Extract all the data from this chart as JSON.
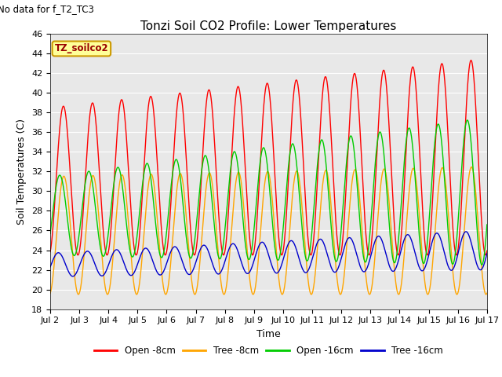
{
  "title": "Tonzi Soil CO2 Profile: Lower Temperatures",
  "no_data_text": "No data for f_T2_TC3",
  "inset_label": "TZ_soilco2",
  "xlabel": "Time",
  "ylabel": "Soil Temperatures (C)",
  "ylim": [
    18,
    46
  ],
  "xlim": [
    0,
    15
  ],
  "x_tick_labels": [
    "Jul 2",
    "Jul 3",
    "Jul 4",
    "Jul 5",
    "Jul 6",
    "Jul 7",
    "Jul 8",
    "Jul 9",
    "Jul 10",
    "Jul 11",
    "Jul 12",
    "Jul 13",
    "Jul 14",
    "Jul 15",
    "Jul 16",
    "Jul 17"
  ],
  "yticks": [
    18,
    20,
    22,
    24,
    26,
    28,
    30,
    32,
    34,
    36,
    38,
    40,
    42,
    44,
    46
  ],
  "background_color": "#e8e8e8",
  "line_colors": [
    "#ff0000",
    "#ffa500",
    "#00cc00",
    "#0000cc"
  ],
  "line_labels": [
    "Open -8cm",
    "Tree -8cm",
    "Open -16cm",
    "Tree -16cm"
  ],
  "legend_items": [
    "Open -8cm",
    "Tree -8cm",
    "Open -16cm",
    "Tree -16cm"
  ]
}
